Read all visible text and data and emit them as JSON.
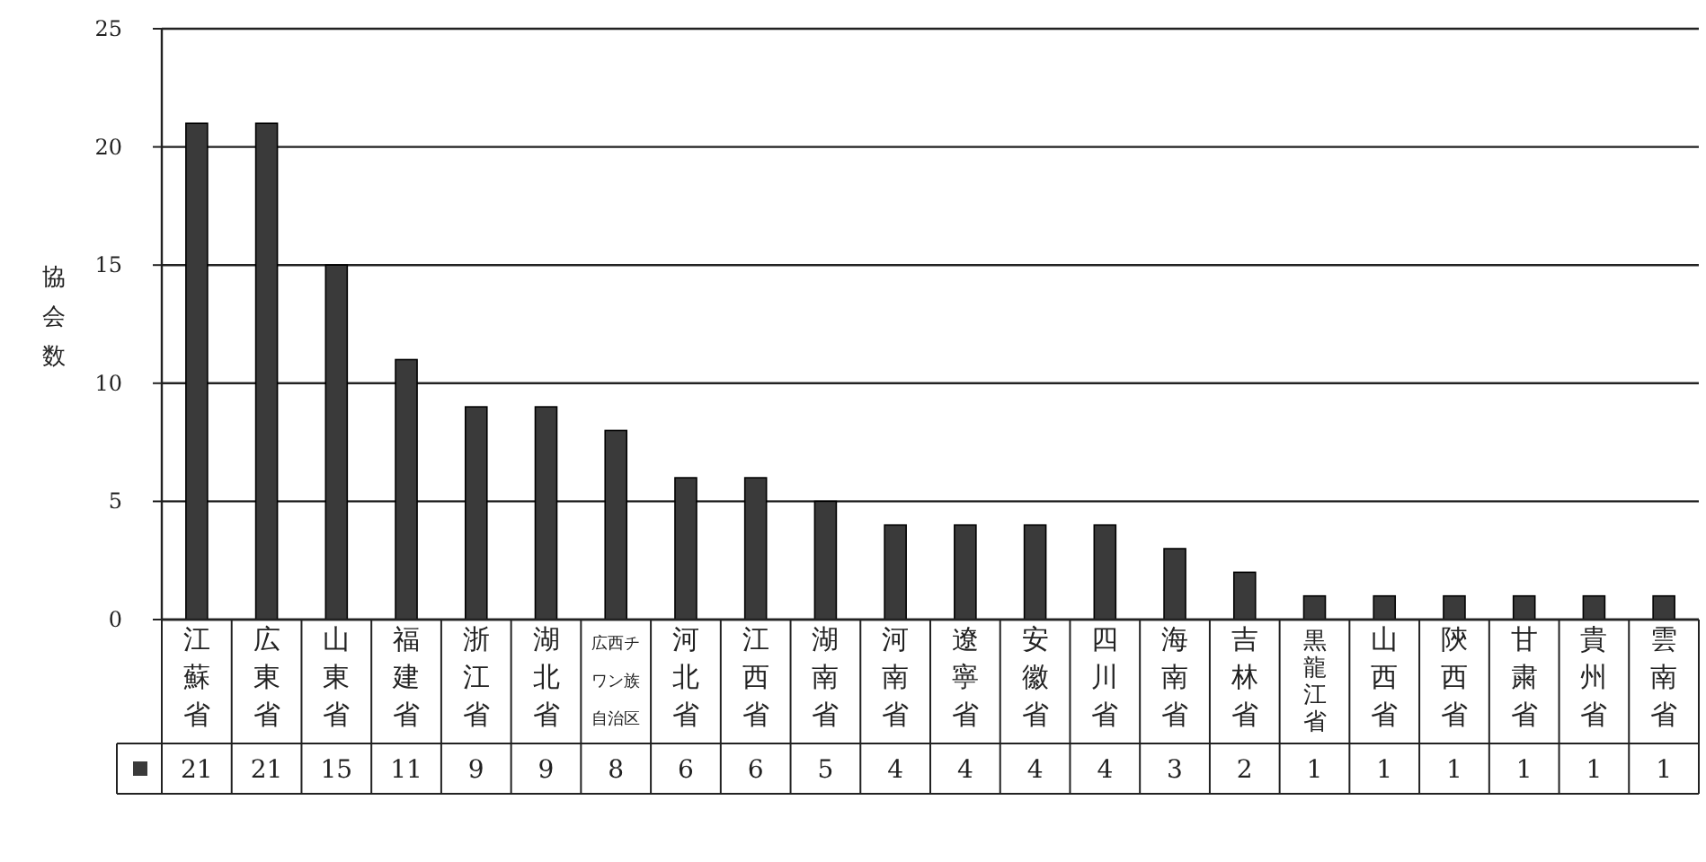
{
  "chart_data": {
    "type": "bar",
    "ylabel": "協会数",
    "categories": [
      "江蘇省",
      "広東省",
      "山東省",
      "福建省",
      "浙江省",
      "湖北省",
      "広西チワン族自治区",
      "河北省",
      "江西省",
      "湖南省",
      "河南省",
      "遼寧省",
      "安徽省",
      "四川省",
      "海南省",
      "吉林省",
      "黒龍江省",
      "山西省",
      "陝西省",
      "甘粛省",
      "貴州省",
      "雲南省"
    ],
    "values": [
      21,
      21,
      15,
      11,
      9,
      9,
      8,
      6,
      6,
      5,
      4,
      4,
      4,
      4,
      3,
      2,
      1,
      1,
      1,
      1,
      1,
      1
    ],
    "color": "#3a3a3a",
    "ylim": [
      0,
      25
    ],
    "yticks": [
      0,
      5,
      10,
      15,
      20,
      25
    ],
    "grid": "y",
    "data_labels": true
  }
}
